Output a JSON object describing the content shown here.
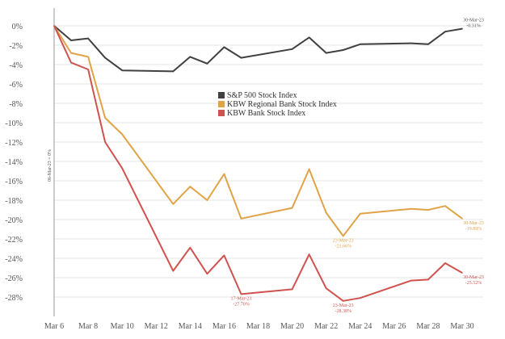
{
  "chart_data": {
    "type": "line",
    "title": "",
    "xlabel": "",
    "ylabel": "",
    "ylim": [
      -30,
      0
    ],
    "grid": true,
    "legend_position": "center",
    "x": [
      "2023-03-06",
      "2023-03-07",
      "2023-03-08",
      "2023-03-09",
      "2023-03-10",
      "2023-03-13",
      "2023-03-14",
      "2023-03-15",
      "2023-03-16",
      "2023-03-17",
      "2023-03-20",
      "2023-03-21",
      "2023-03-22",
      "2023-03-23",
      "2023-03-24",
      "2023-03-27",
      "2023-03-28",
      "2023-03-29",
      "2023-03-30"
    ],
    "x_tick_labels": [
      "Mar 6",
      "Mar 8",
      "Mar 10",
      "Mar 12",
      "Mar 14",
      "Mar 16",
      "Mar 18",
      "Mar 20",
      "Mar 22",
      "Mar 24",
      "Mar 26",
      "Mar 28",
      "Mar 30"
    ],
    "y_ticks": [
      0,
      -2,
      -4,
      -6,
      -8,
      -10,
      -12,
      -14,
      -16,
      -18,
      -20,
      -22,
      -24,
      -26,
      -28
    ],
    "y_tick_labels": [
      "0%",
      "-2%",
      "-4%",
      "-6%",
      "-8%",
      "-10%",
      "-12%",
      "-14%",
      "-16%",
      "-18%",
      "-20%",
      "-22%",
      "-24%",
      "-26%",
      "-28%"
    ],
    "baseline_label": "06-Mar-23 = 0%",
    "series": [
      {
        "name": "S&P 500 Stock Index",
        "color": "#404040",
        "values": [
          0,
          -1.5,
          -1.3,
          -3.3,
          -4.6,
          -4.7,
          -3.2,
          -3.9,
          -2.2,
          -3.3,
          -2.4,
          -1.2,
          -2.8,
          -2.5,
          -1.9,
          -1.8,
          -1.9,
          -0.6,
          -0.3
        ]
      },
      {
        "name": "KBW Regional Bank Stock Index",
        "color": "#e0a347",
        "values": [
          0,
          -2.8,
          -3.2,
          -9.5,
          -11.2,
          -18.4,
          -16.6,
          -18.0,
          -15.3,
          -19.9,
          -18.8,
          -14.8,
          -19.3,
          -21.7,
          -19.4,
          -18.9,
          -19.0,
          -18.6,
          -19.9
        ]
      },
      {
        "name": "KBW Bank Stock Index",
        "color": "#d0524f",
        "values": [
          0,
          -3.8,
          -4.5,
          -12.0,
          -14.7,
          -25.3,
          -22.9,
          -25.6,
          -23.7,
          -27.7,
          -27.2,
          -23.6,
          -27.1,
          -28.4,
          -28.1,
          -26.3,
          -26.2,
          -24.5,
          -25.5
        ]
      }
    ],
    "annotations": [
      {
        "series": 0,
        "index": 18,
        "lines": [
          "30-Mar-23",
          "-0.31%"
        ]
      },
      {
        "series": 1,
        "index": 13,
        "lines": [
          "23-Mar-23",
          "-21.66%"
        ]
      },
      {
        "series": 1,
        "index": 18,
        "lines": [
          "30-Mar-23",
          "-19.89%"
        ]
      },
      {
        "series": 2,
        "index": 9,
        "lines": [
          "17-Mar-23",
          "-27.70%"
        ]
      },
      {
        "series": 2,
        "index": 13,
        "lines": [
          "23-Mar-23",
          "-28.38%"
        ]
      },
      {
        "series": 2,
        "index": 18,
        "lines": [
          "30-Mar-23",
          "-25.52%"
        ]
      }
    ]
  }
}
